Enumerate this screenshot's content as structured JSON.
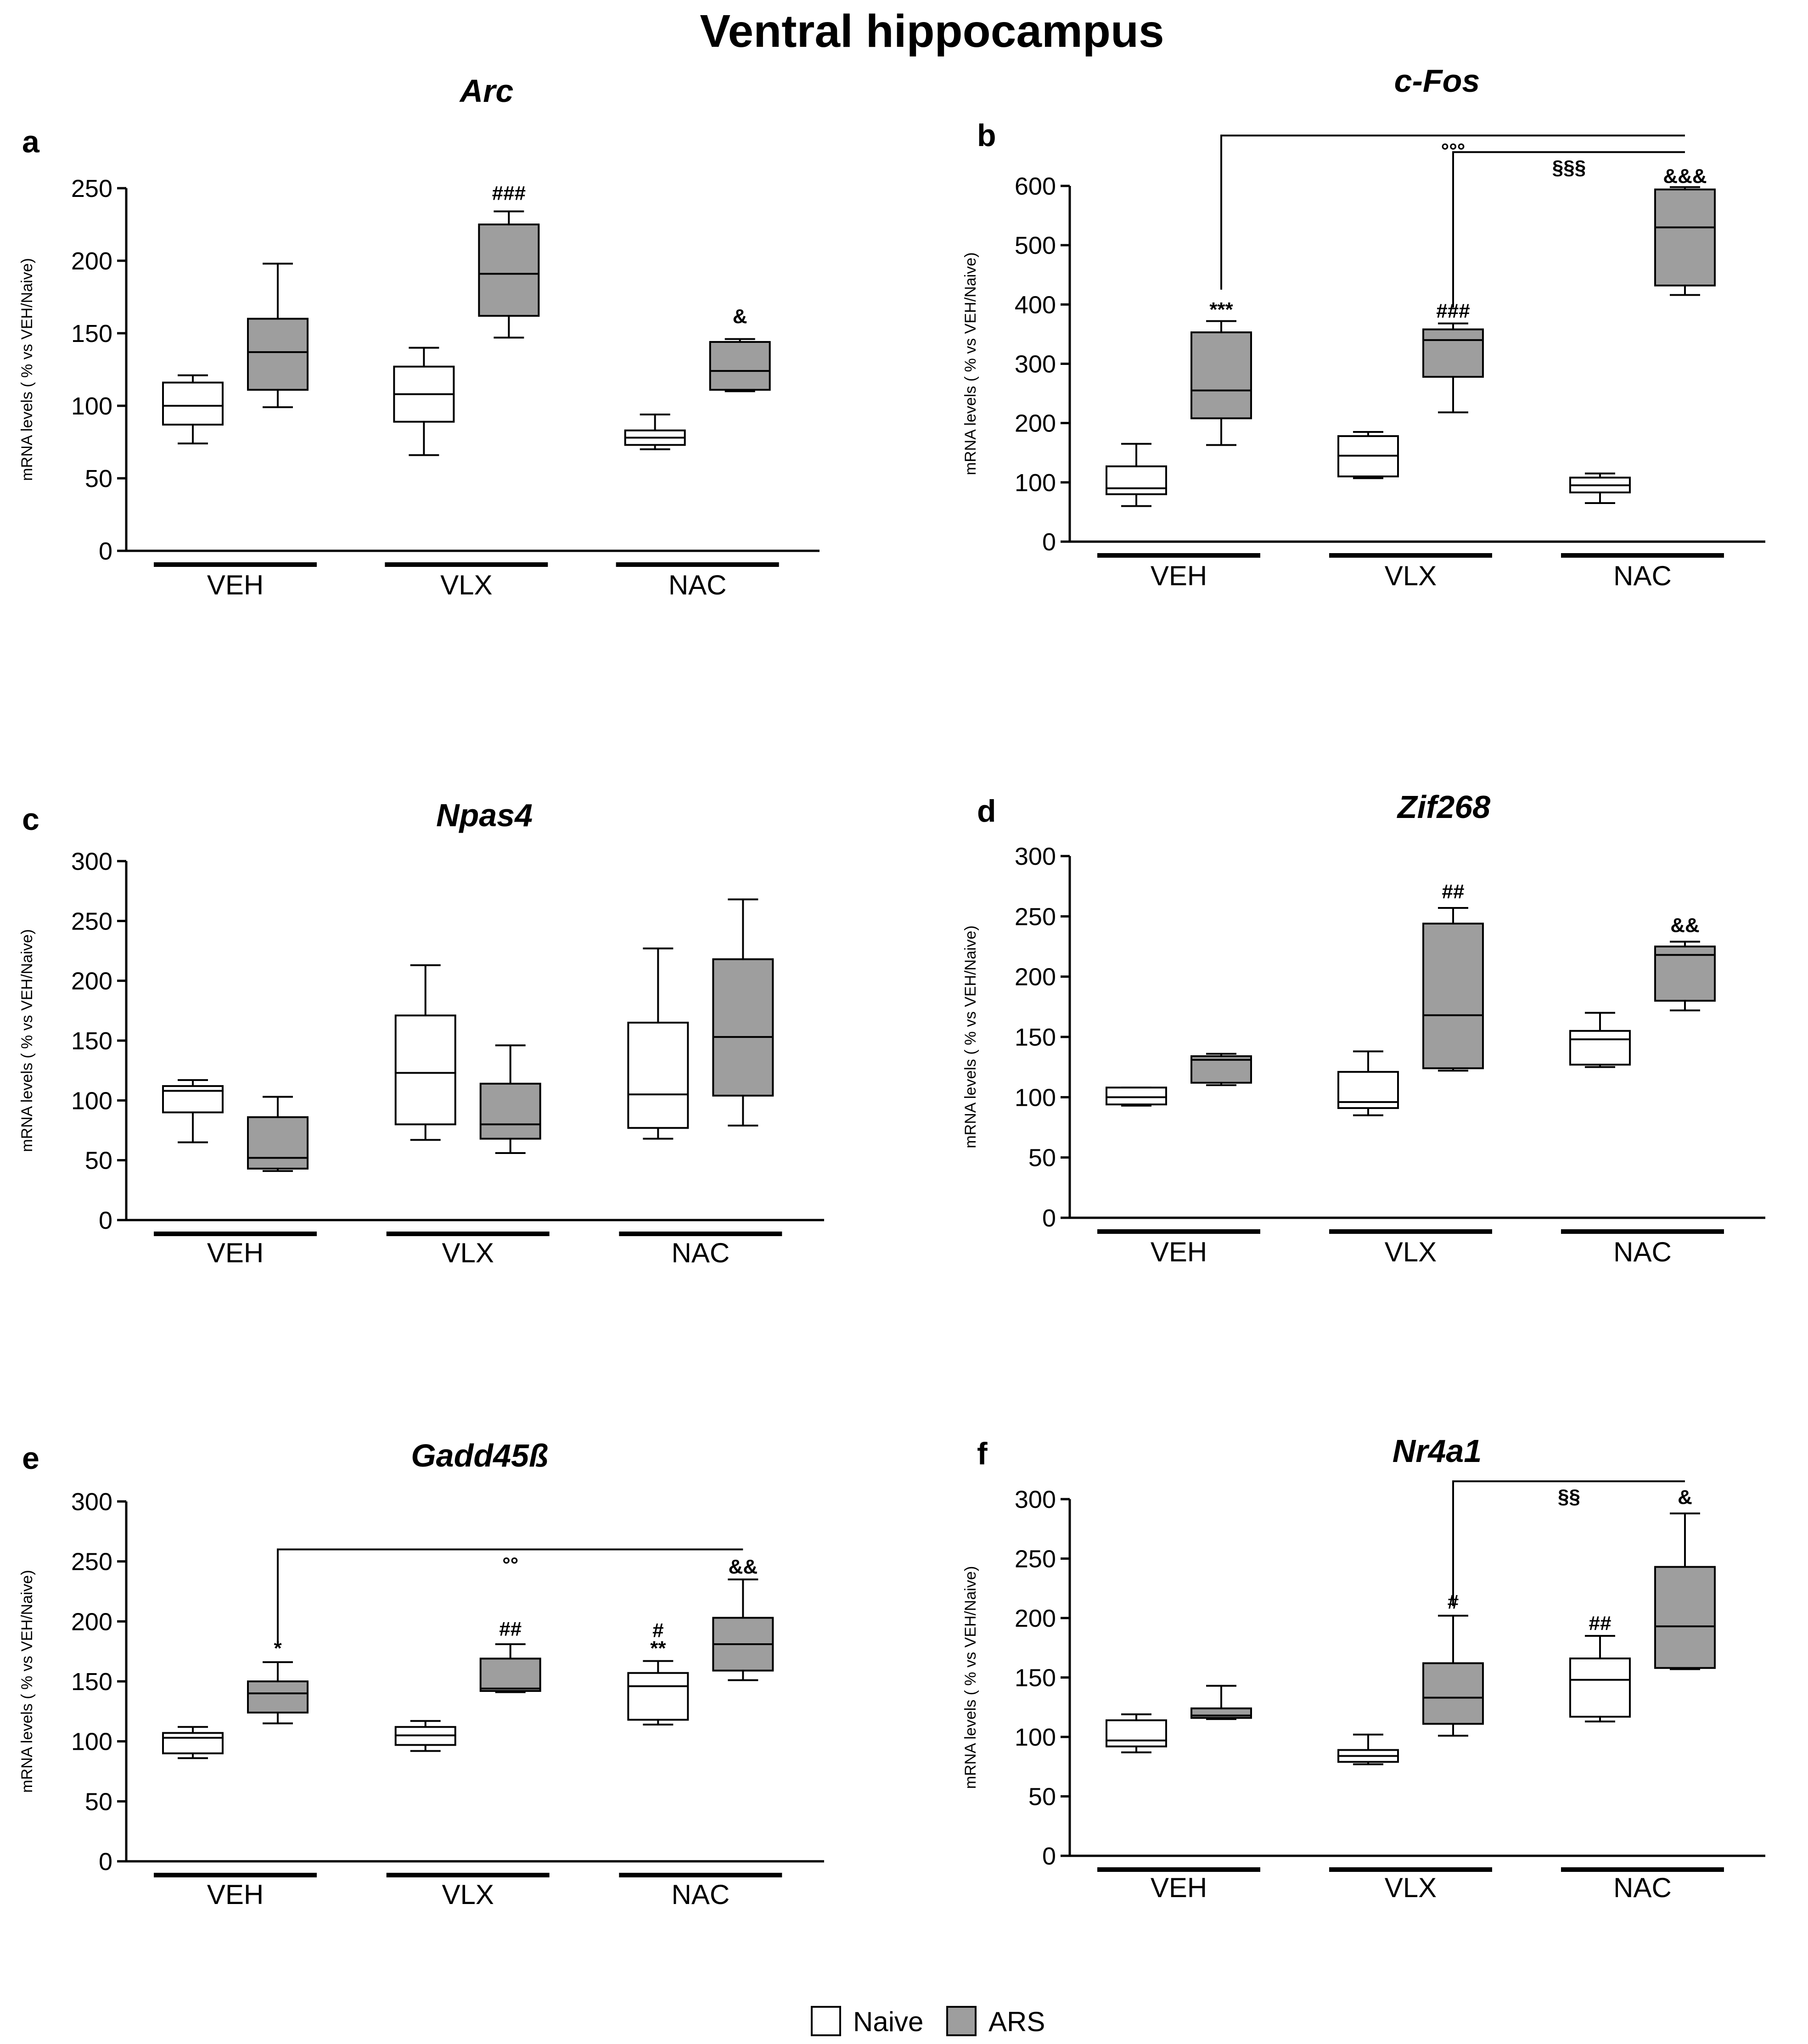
{
  "figure_title": "Ventral hippocampus",
  "legend": [
    {
      "label": "Naive",
      "color": "#ffffff"
    },
    {
      "label": "ARS",
      "color": "#9e9e9e"
    }
  ],
  "colors": {
    "naive_fill": "#ffffff",
    "ars_fill": "#9e9e9e",
    "stroke": "#000000"
  },
  "chart_data": [
    {
      "panel": "a",
      "title": "Arc",
      "type": "box",
      "ylabel": "mRNA levels ( % vs VEH/Naive)",
      "ylim": [
        0,
        250
      ],
      "yticks": [
        0,
        50,
        100,
        150,
        200,
        250
      ],
      "groups": [
        "VEH",
        "VLX",
        "NAC"
      ],
      "series": [
        {
          "name": "Naive",
          "boxes": [
            [
              74,
              87,
              100,
              116,
              121
            ],
            [
              66,
              89,
              108,
              127,
              140
            ],
            [
              70,
              73,
              78,
              83,
              94
            ]
          ]
        },
        {
          "name": "ARS",
          "boxes": [
            [
              99,
              111,
              137,
              160,
              198
            ],
            [
              147,
              162,
              191,
              225,
              234
            ],
            [
              110,
              111,
              124,
              144,
              146
            ]
          ]
        }
      ],
      "annotations": [
        {
          "text": "###",
          "group": 1,
          "series": 1,
          "value": 242
        },
        {
          "text": "&",
          "group": 2,
          "series": 1,
          "value": 157
        }
      ],
      "brackets": []
    },
    {
      "panel": "b",
      "title": "c-Fos",
      "type": "box",
      "ylabel": "mRNA levels ( % vs VEH/Naive)",
      "ylim": [
        0,
        600
      ],
      "yticks": [
        0,
        100,
        200,
        300,
        400,
        500,
        600
      ],
      "groups": [
        "VEH",
        "VLX",
        "NAC"
      ],
      "series": [
        {
          "name": "Naive",
          "boxes": [
            [
              60,
              80,
              90,
              127,
              165
            ],
            [
              107,
              110,
              145,
              178,
              185
            ],
            [
              65,
              83,
              95,
              108,
              115
            ]
          ]
        },
        {
          "name": "ARS",
          "boxes": [
            [
              163,
              208,
              255,
              353,
              372
            ],
            [
              218,
              278,
              340,
              358,
              368
            ],
            [
              416,
              432,
              530,
              594,
              598
            ]
          ]
        }
      ],
      "annotations": [
        {
          "text": "***",
          "group": 0,
          "series": 1,
          "value": 380
        },
        {
          "text": "###",
          "group": 1,
          "series": 1,
          "value": 378
        },
        {
          "text": "&&&",
          "group": 2,
          "series": 1,
          "value": 605
        }
      ],
      "brackets": [
        {
          "from": [
            0,
            1
          ],
          "to": [
            2,
            1
          ],
          "text": "°°°",
          "level": 685,
          "start": 425
        },
        {
          "from": [
            1,
            1
          ],
          "to": [
            2,
            1
          ],
          "text": "§§§",
          "level": 657,
          "start": 395
        }
      ]
    },
    {
      "panel": "c",
      "title": "Npas4",
      "type": "box",
      "ylabel": "mRNA levels ( % vs VEH/Naive)",
      "ylim": [
        0,
        300
      ],
      "yticks": [
        0,
        50,
        100,
        150,
        200,
        250,
        300
      ],
      "groups": [
        "VEH",
        "VLX",
        "NAC"
      ],
      "series": [
        {
          "name": "Naive",
          "boxes": [
            [
              65,
              90,
              108,
              112,
              117
            ],
            [
              67,
              80,
              123,
              171,
              213
            ],
            [
              68,
              77,
              105,
              165,
              227
            ]
          ]
        },
        {
          "name": "ARS",
          "boxes": [
            [
              41,
              43,
              52,
              86,
              103
            ],
            [
              56,
              68,
              80,
              114,
              146
            ],
            [
              79,
              104,
              153,
              218,
              268
            ]
          ]
        }
      ],
      "annotations": [],
      "brackets": []
    },
    {
      "panel": "d",
      "title": "Zif268",
      "type": "box",
      "ylabel": "mRNA levels ( % vs VEH/Naive)",
      "ylim": [
        0,
        300
      ],
      "yticks": [
        0,
        50,
        100,
        150,
        200,
        250,
        300
      ],
      "groups": [
        "VEH",
        "VLX",
        "NAC"
      ],
      "series": [
        {
          "name": "Naive",
          "boxes": [
            [
              93,
              94,
              100,
              108,
              108
            ],
            [
              85,
              91,
              96,
              121,
              138
            ],
            [
              125,
              127,
              148,
              155,
              170
            ]
          ]
        },
        {
          "name": "ARS",
          "boxes": [
            [
              110,
              112,
              131,
              134,
              136
            ],
            [
              122,
              124,
              168,
              244,
              257
            ],
            [
              172,
              180,
              218,
              225,
              229
            ]
          ]
        }
      ],
      "annotations": [
        {
          "text": "##",
          "group": 1,
          "series": 1,
          "value": 265
        },
        {
          "text": "&&",
          "group": 2,
          "series": 1,
          "value": 237
        }
      ],
      "brackets": []
    },
    {
      "panel": "e",
      "title": "Gadd45ß",
      "type": "box",
      "ylabel": "mRNA levels ( % vs VEH/Naive)",
      "ylim": [
        0,
        300
      ],
      "yticks": [
        0,
        50,
        100,
        150,
        200,
        250,
        300
      ],
      "groups": [
        "VEH",
        "VLX",
        "NAC"
      ],
      "series": [
        {
          "name": "Naive",
          "boxes": [
            [
              86,
              90,
              103,
              107,
              112
            ],
            [
              92,
              97,
              105,
              112,
              117
            ],
            [
              114,
              118,
              146,
              157,
              167
            ]
          ]
        },
        {
          "name": "ARS",
          "boxes": [
            [
              115,
              124,
              140,
              150,
              166
            ],
            [
              141,
              142,
              144,
              169,
              181
            ],
            [
              151,
              159,
              181,
              203,
              235
            ]
          ]
        }
      ],
      "annotations": [
        {
          "text": "*",
          "group": 0,
          "series": 1,
          "value": 172
        },
        {
          "text": "##",
          "group": 1,
          "series": 1,
          "value": 188
        },
        {
          "text": "**",
          "group": 2,
          "series": 0,
          "value": 172
        },
        {
          "text": "#",
          "group": 2,
          "series": 0,
          "value": 187
        },
        {
          "text": "&&",
          "group": 2,
          "series": 1,
          "value": 240
        }
      ],
      "brackets": [
        {
          "from": [
            0,
            1
          ],
          "to": [
            2,
            1
          ],
          "text": "°°",
          "level": 260,
          "start": 180
        }
      ]
    },
    {
      "panel": "f",
      "title": "Nr4a1",
      "type": "box",
      "ylabel": "mRNA levels ( % vs VEH/Naive)",
      "ylim": [
        0,
        300
      ],
      "yticks": [
        0,
        50,
        100,
        150,
        200,
        250,
        300
      ],
      "groups": [
        "VEH",
        "VLX",
        "NAC"
      ],
      "series": [
        {
          "name": "Naive",
          "boxes": [
            [
              87,
              92,
              97,
              114,
              119
            ],
            [
              77,
              79,
              84,
              89,
              102
            ],
            [
              113,
              117,
              148,
              166,
              185
            ]
          ]
        },
        {
          "name": "ARS",
          "boxes": [
            [
              115,
              116,
              118,
              124,
              143
            ],
            [
              101,
              111,
              133,
              162,
              202
            ],
            [
              157,
              158,
              193,
              243,
              288
            ]
          ]
        }
      ],
      "annotations": [
        {
          "text": "#",
          "group": 1,
          "series": 1,
          "value": 208
        },
        {
          "text": "##",
          "group": 2,
          "series": 0,
          "value": 190
        },
        {
          "text": "&",
          "group": 2,
          "series": 1,
          "value": 296
        }
      ],
      "brackets": [
        {
          "from": [
            1,
            1
          ],
          "to": [
            2,
            1
          ],
          "text": "§§",
          "level": 315,
          "start": 210
        }
      ]
    }
  ]
}
